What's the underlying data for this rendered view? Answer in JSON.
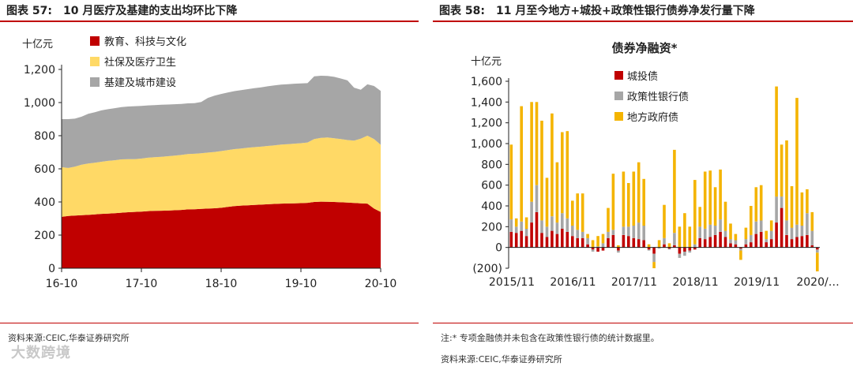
{
  "left": {
    "fig_num": "图表 57:",
    "title": "10 月医疗及基建的支出均环比下降",
    "source": "资料来源:CEIC,华泰证券研究所",
    "chart_data": {
      "type": "area",
      "stacked": true,
      "ylabel": "十亿元",
      "ylim": [
        0,
        1200
      ],
      "yticks": [
        0,
        200,
        400,
        600,
        800,
        1000,
        1200
      ],
      "ytick_labels": [
        "0",
        "200",
        "400",
        "600",
        "800",
        "1,000",
        "1,200"
      ],
      "xtick_labels": [
        "16-10",
        "17-10",
        "18-10",
        "19-10",
        "20-10"
      ],
      "x_periods": 49,
      "legend": [
        "教育、科技与文化",
        "社保及医疗卫生",
        "基建及城市建设"
      ],
      "colors": [
        "#c00000",
        "#ffd966",
        "#a6a6a6"
      ],
      "series": [
        {
          "name": "教育、科技与文化",
          "values": [
            310,
            315,
            318,
            320,
            322,
            325,
            328,
            330,
            332,
            335,
            338,
            340,
            342,
            345,
            346,
            347,
            348,
            350,
            352,
            355,
            356,
            358,
            360,
            362,
            365,
            370,
            375,
            378,
            380,
            382,
            384,
            386,
            388,
            390,
            391,
            392,
            393,
            395,
            400,
            402,
            401,
            400,
            398,
            396,
            394,
            392,
            390,
            360,
            340
          ]
        },
        {
          "name": "社保及医疗卫生",
          "values": [
            300,
            290,
            295,
            305,
            310,
            312,
            315,
            318,
            320,
            322,
            320,
            318,
            320,
            322,
            324,
            326,
            328,
            330,
            332,
            334,
            335,
            336,
            338,
            340,
            342,
            343,
            344,
            345,
            347,
            349,
            350,
            352,
            354,
            356,
            358,
            360,
            362,
            364,
            380,
            385,
            388,
            385,
            382,
            378,
            376,
            390,
            410,
            420,
            405
          ]
        },
        {
          "name": "基建及城市建设",
          "values": [
            290,
            295,
            290,
            290,
            300,
            305,
            310,
            312,
            314,
            316,
            318,
            320,
            318,
            316,
            315,
            314,
            312,
            310,
            308,
            306,
            305,
            310,
            330,
            340,
            345,
            348,
            350,
            352,
            354,
            356,
            358,
            360,
            362,
            362,
            362,
            362,
            360,
            358,
            378,
            375,
            372,
            370,
            365,
            360,
            320,
            295,
            310,
            320,
            325
          ]
        }
      ]
    }
  },
  "right": {
    "fig_num": "图表 58:",
    "title": "11 月至今地方+城投+政策性银行债券净发行量下降",
    "note": "注:* 专项金融债并未包含在政策性银行债的统计数据里。",
    "source": "资料来源:CEIC,华泰证券研究所",
    "chart_data": {
      "type": "bar",
      "stacked": true,
      "title": "债券净融资*",
      "ylabel": "十亿元",
      "ylim": [
        -200,
        1600
      ],
      "yticks": [
        -200,
        0,
        200,
        400,
        600,
        800,
        1000,
        1200,
        1400,
        1600
      ],
      "ytick_labels": [
        "(200)",
        "0",
        "200",
        "400",
        "600",
        "800",
        "1,000",
        "1,200",
        "1,400",
        "1,600"
      ],
      "xtick_labels": [
        "2015/11",
        "2016/11",
        "2017/11",
        "2018/11",
        "2019/11",
        "2020/…"
      ],
      "x_periods": 61,
      "legend": [
        "城投债",
        "政策性银行债",
        "地方政府债"
      ],
      "colors": [
        "#c00000",
        "#a6a6a6",
        "#f4b400"
      ],
      "series": [
        {
          "name": "城投债",
          "values": [
            150,
            140,
            160,
            110,
            240,
            340,
            140,
            100,
            160,
            130,
            180,
            150,
            110,
            90,
            90,
            30,
            -20,
            -40,
            -30,
            90,
            120,
            -30,
            120,
            110,
            90,
            80,
            70,
            -20,
            -60,
            0,
            30,
            -10,
            20,
            -60,
            -40,
            -30,
            -20,
            90,
            80,
            100,
            120,
            150,
            100,
            40,
            30,
            -10,
            30,
            50,
            130,
            150,
            50,
            80,
            240,
            380,
            120,
            80,
            100,
            110,
            120,
            20,
            -20
          ]
        },
        {
          "name": "政策性银行债",
          "values": [
            120,
            60,
            90,
            70,
            200,
            260,
            120,
            100,
            140,
            110,
            150,
            130,
            100,
            80,
            60,
            60,
            -20,
            10,
            40,
            60,
            50,
            -20,
            80,
            90,
            120,
            160,
            140,
            -10,
            -80,
            -10,
            60,
            -10,
            120,
            -40,
            -40,
            -20,
            30,
            110,
            100,
            120,
            90,
            120,
            60,
            40,
            40,
            -20,
            50,
            70,
            120,
            110,
            30,
            80,
            250,
            110,
            140,
            110,
            120,
            100,
            210,
            140,
            -30
          ]
        },
        {
          "name": "地方政府债",
          "values": [
            720,
            80,
            1110,
            110,
            960,
            800,
            960,
            470,
            990,
            580,
            780,
            840,
            240,
            350,
            370,
            40,
            70,
            100,
            90,
            230,
            540,
            20,
            530,
            420,
            520,
            580,
            450,
            30,
            -60,
            70,
            320,
            40,
            800,
            200,
            330,
            200,
            620,
            190,
            550,
            520,
            370,
            480,
            280,
            150,
            60,
            -90,
            110,
            280,
            330,
            340,
            80,
            100,
            1060,
            500,
            770,
            400,
            1220,
            320,
            230,
            180,
            -180
          ]
        }
      ]
    }
  }
}
